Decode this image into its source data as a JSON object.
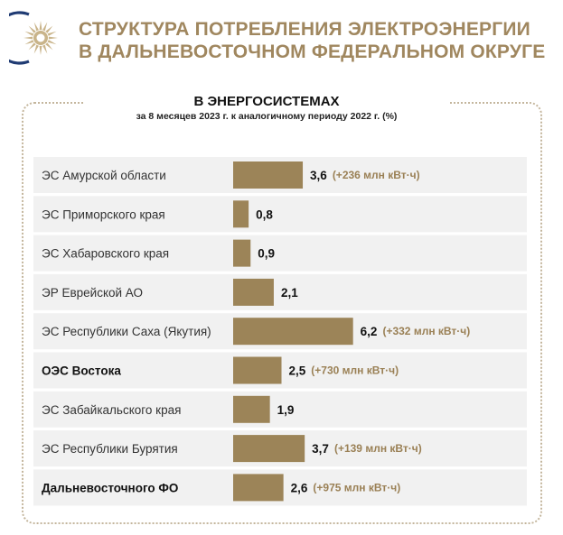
{
  "header": {
    "title_line1": "СТРУКТУРА ПОТРЕБЛЕНИЯ ЭЛЕКТРОЭНЕРГИИ",
    "title_line2": "В ДАЛЬНЕВОСТОЧНОМ ФЕДЕРАЛЬНОМ ОКРУГЕ",
    "logo_icon": "sun-emblem-icon",
    "accent_color": "#a0875f"
  },
  "chart_data": {
    "type": "bar",
    "orientation": "horizontal",
    "title": "В ЭНЕРГОСИСТЕМАХ",
    "subtitle": "за 8 месяцев 2023 г. к аналогичному периоду 2022 г. (%)",
    "bar_color": "#9c8458",
    "delta_color": "#9a8055",
    "categories": [
      "ЭС Амурской области",
      "ЭС Приморского края",
      "ЭС Хабаровского края",
      "ЭР Еврейской АО",
      "ЭС Республики Саха (Якутия)",
      "ОЭС Востока",
      "ЭС Забайкальского края",
      "ЭС Республики Бурятия",
      "Дальневосточного ФО"
    ],
    "values": [
      3.6,
      0.8,
      0.9,
      2.1,
      6.2,
      2.5,
      1.9,
      3.7,
      2.6
    ],
    "value_labels": [
      "3,6",
      "0,8",
      "0,9",
      "2,1",
      "6,2",
      "2,5",
      "1,9",
      "3,7",
      "2,6"
    ],
    "deltas": [
      "(+236 млн кВт·ч)",
      "",
      "",
      "",
      "(+332 млн кВт·ч)",
      "(+730 млн кВт·ч)",
      "",
      "(+139 млн кВт·ч)",
      "(+975 млн кВт·ч)"
    ],
    "bold_categories": [
      false,
      false,
      false,
      false,
      false,
      true,
      false,
      false,
      true
    ]
  }
}
